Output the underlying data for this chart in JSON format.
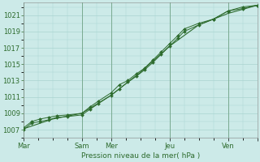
{
  "bg_color": "#cceae8",
  "plot_bg_color": "#cceae8",
  "grid_color": "#aad4d0",
  "line_color": "#2d6b2d",
  "marker_color": "#2d6b2d",
  "xlabel": "Pression niveau de la mer( hPa )",
  "ylabel_ticks": [
    1007,
    1009,
    1011,
    1013,
    1015,
    1017,
    1019,
    1021
  ],
  "xlim": [
    0,
    112
  ],
  "ylim": [
    1006.0,
    1022.5
  ],
  "xtick_positions": [
    0,
    28,
    42,
    70,
    98,
    112
  ],
  "xtick_labels": [
    "Mar",
    "Sam",
    "Mer",
    "Jeu",
    "Ven",
    ""
  ],
  "vline_positions": [
    0,
    28,
    42,
    70,
    98,
    112
  ],
  "series1_x": [
    0,
    4,
    8,
    12,
    16,
    21,
    28,
    32,
    36,
    42,
    46,
    50,
    54,
    58,
    62,
    66,
    70,
    74,
    77,
    84,
    91,
    98,
    105,
    112
  ],
  "series1_y": [
    1007.2,
    1008.0,
    1008.3,
    1008.5,
    1008.7,
    1008.8,
    1009.0,
    1009.8,
    1010.5,
    1011.5,
    1012.5,
    1013.0,
    1013.8,
    1014.5,
    1015.5,
    1016.5,
    1017.5,
    1018.5,
    1019.3,
    1020.0,
    1020.5,
    1021.5,
    1021.8,
    1022.2
  ],
  "series2_x": [
    0,
    4,
    8,
    12,
    16,
    21,
    28,
    32,
    36,
    42,
    46,
    50,
    54,
    58,
    62,
    66,
    70,
    74,
    77,
    84,
    91,
    98,
    105,
    112
  ],
  "series2_y": [
    1007.0,
    1007.8,
    1008.0,
    1008.2,
    1008.5,
    1008.6,
    1008.8,
    1009.5,
    1010.2,
    1011.2,
    1012.0,
    1012.8,
    1013.5,
    1014.3,
    1015.2,
    1016.2,
    1017.2,
    1018.2,
    1019.0,
    1019.8,
    1020.5,
    1021.5,
    1022.0,
    1022.2
  ],
  "series3_x": [
    0,
    14,
    28,
    42,
    56,
    70,
    84,
    98,
    112
  ],
  "series3_y": [
    1007.1,
    1008.3,
    1009.0,
    1011.2,
    1014.0,
    1017.2,
    1019.8,
    1021.2,
    1022.2
  ],
  "figsize": [
    3.2,
    2.0
  ],
  "dpi": 100,
  "xlabel_fontsize": 6.5,
  "tick_fontsize": 6,
  "tick_color": "#2d6b2d"
}
